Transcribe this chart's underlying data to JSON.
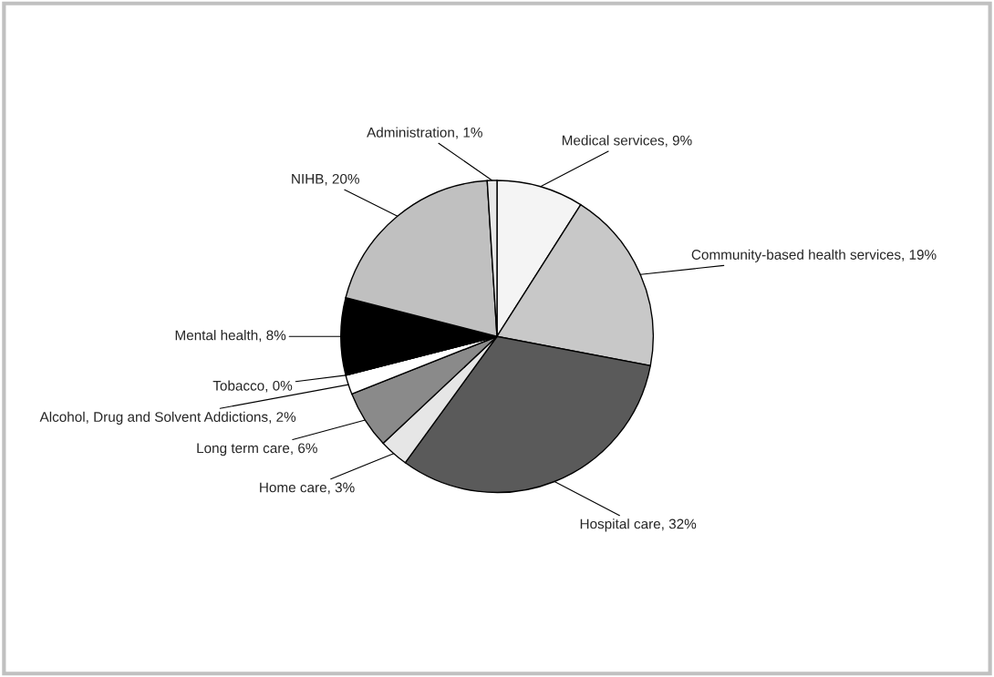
{
  "chart_data": {
    "type": "pie",
    "categories": [
      "Medical services",
      "Community-based health services",
      "Hospital care",
      "Home care",
      "Long term care",
      "Alcohol, Drug and Solvent Addictions",
      "Tobacco",
      "Mental health",
      "NIHB",
      "Administration"
    ],
    "values": [
      9,
      19,
      32,
      3,
      6,
      2,
      0,
      8,
      20,
      1
    ],
    "value_labels": [
      "9%",
      "19%",
      "32%",
      "3%",
      "6%",
      "2%",
      "0%",
      "8%",
      "20%",
      "1%"
    ],
    "colors": [
      "#f4f4f4",
      "#c8c8c8",
      "#5a5a5a",
      "#e6e6e6",
      "#8a8a8a",
      "#ffffff",
      "#ffffff",
      "#000000",
      "#c0c0c0",
      "#e8e8e8"
    ]
  }
}
